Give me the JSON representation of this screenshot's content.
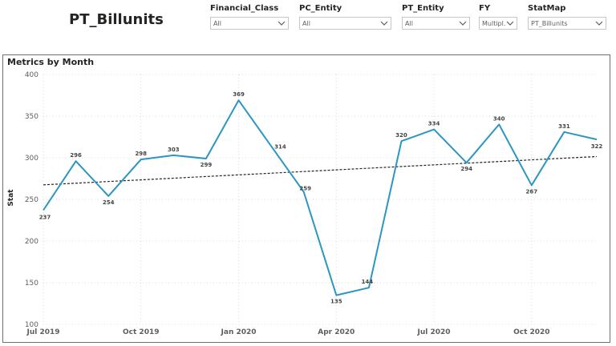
{
  "page": {
    "title": "PT_Billunits"
  },
  "slicers": [
    {
      "label": "Financial_Class",
      "value": "All"
    },
    {
      "label": "PC_Entity",
      "value": "All"
    },
    {
      "label": "PT_Entity",
      "value": "All"
    },
    {
      "label": "FY",
      "value": "Multipl..."
    },
    {
      "label": "StatMap",
      "value": "PT_Billunits"
    }
  ],
  "chart_data": {
    "type": "line",
    "title": "Metrics by Month",
    "xlabel": "",
    "ylabel": "Stat",
    "x": [
      "2019-07",
      "2019-08",
      "2019-09",
      "2019-10",
      "2019-11",
      "2019-12",
      "2020-01",
      "2020-02",
      "2020-03",
      "2020-04",
      "2020-05",
      "2020-06",
      "2020-07",
      "2020-08",
      "2020-09",
      "2020-10",
      "2020-11",
      "2020-12"
    ],
    "xticks": [
      {
        "label": "Jul 2019",
        "index": 0
      },
      {
        "label": "Oct 2019",
        "index": 3
      },
      {
        "label": "Jan 2020",
        "index": 6
      },
      {
        "label": "Apr 2020",
        "index": 9
      },
      {
        "label": "Jul 2020",
        "index": 12
      },
      {
        "label": "Oct 2020",
        "index": 15
      }
    ],
    "series": [
      {
        "values": [
          237,
          296,
          254,
          298,
          303,
          299,
          369,
          314,
          259,
          135,
          144,
          320,
          334,
          294,
          340,
          267,
          331,
          322
        ],
        "color": "#2b96c4"
      }
    ],
    "trendline": {
      "start": 267.5,
      "end": 301.5,
      "color": "#252423",
      "style": "dotted"
    },
    "ylim": [
      100,
      400
    ],
    "yticks": [
      100,
      150,
      200,
      250,
      300,
      350,
      400
    ],
    "grid": true
  }
}
